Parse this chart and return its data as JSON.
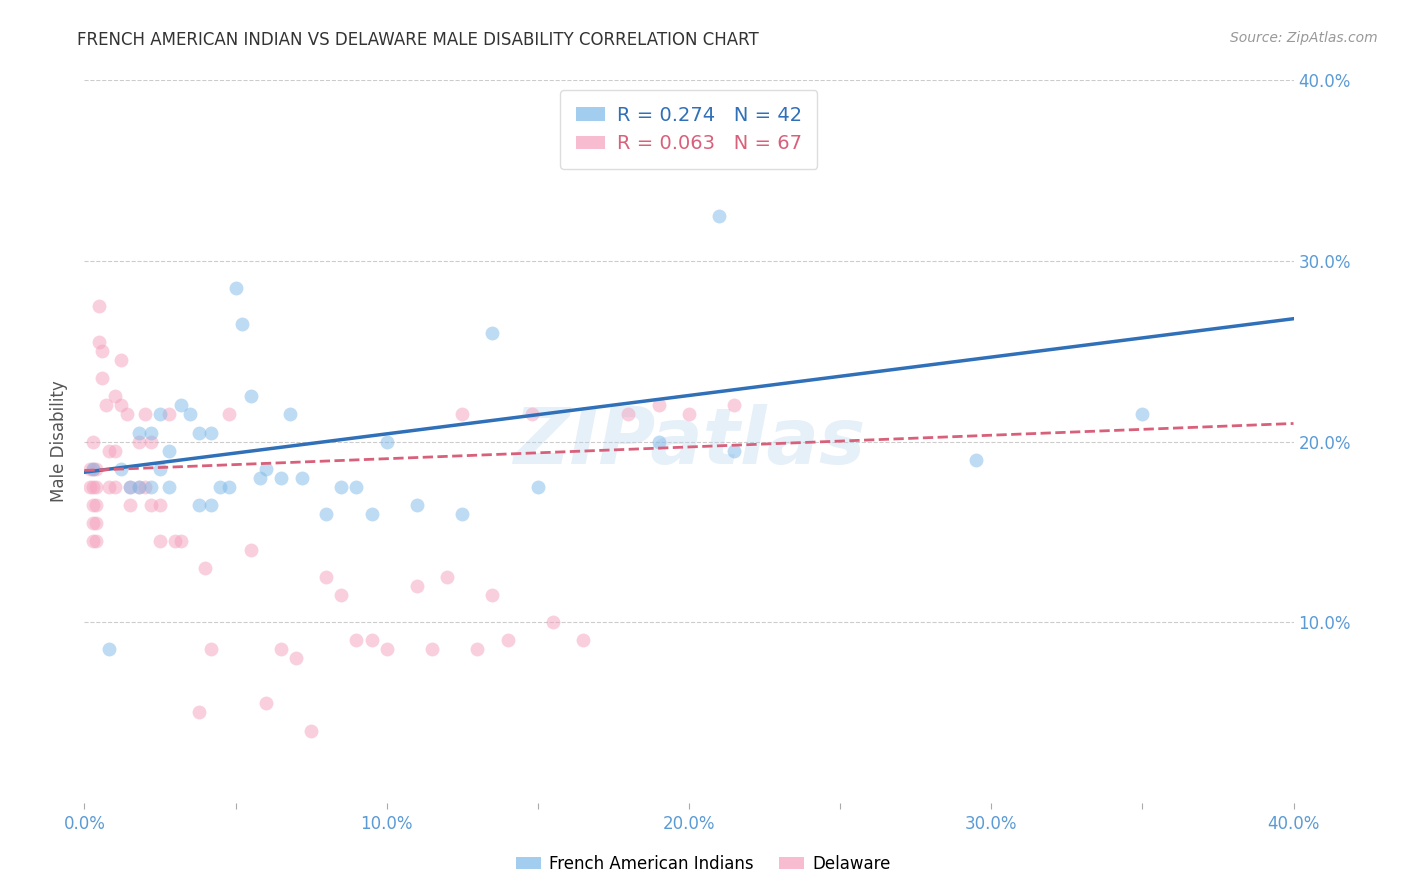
{
  "title": "FRENCH AMERICAN INDIAN VS DELAWARE MALE DISABILITY CORRELATION CHART",
  "source": "Source: ZipAtlas.com",
  "ylabel": "Male Disability",
  "xlim": [
    0.0,
    0.4
  ],
  "ylim": [
    0.0,
    0.4
  ],
  "xtick_labels": [
    "0.0%",
    "",
    "10.0%",
    "",
    "20.0%",
    "",
    "30.0%",
    "",
    "40.0%"
  ],
  "xtick_vals": [
    0.0,
    0.05,
    0.1,
    0.15,
    0.2,
    0.25,
    0.3,
    0.35,
    0.4
  ],
  "ytick_vals": [
    0.1,
    0.2,
    0.3,
    0.4
  ],
  "ytick_right_labels": [
    "10.0%",
    "20.0%",
    "30.0%",
    "40.0%"
  ],
  "blue_color": "#7db8e8",
  "pink_color": "#f4a0bc",
  "blue_line_color": "#3070b8",
  "pink_line_color": "#d9607a",
  "legend_R_blue": "R = 0.274",
  "legend_N_blue": "N = 42",
  "legend_R_pink": "R = 0.063",
  "legend_N_pink": "N = 67",
  "blue_scatter_x": [
    0.003,
    0.008,
    0.012,
    0.015,
    0.018,
    0.018,
    0.022,
    0.022,
    0.025,
    0.025,
    0.028,
    0.028,
    0.032,
    0.035,
    0.038,
    0.038,
    0.042,
    0.042,
    0.045,
    0.048,
    0.05,
    0.052,
    0.055,
    0.058,
    0.06,
    0.065,
    0.068,
    0.072,
    0.08,
    0.085,
    0.09,
    0.095,
    0.1,
    0.11,
    0.125,
    0.135,
    0.15,
    0.19,
    0.21,
    0.215,
    0.295,
    0.35
  ],
  "blue_scatter_y": [
    0.185,
    0.085,
    0.185,
    0.175,
    0.175,
    0.205,
    0.175,
    0.205,
    0.185,
    0.215,
    0.175,
    0.195,
    0.22,
    0.215,
    0.165,
    0.205,
    0.165,
    0.205,
    0.175,
    0.175,
    0.285,
    0.265,
    0.225,
    0.18,
    0.185,
    0.18,
    0.215,
    0.18,
    0.16,
    0.175,
    0.175,
    0.16,
    0.2,
    0.165,
    0.16,
    0.26,
    0.175,
    0.2,
    0.325,
    0.195,
    0.19,
    0.215
  ],
  "pink_scatter_x": [
    0.002,
    0.002,
    0.003,
    0.003,
    0.003,
    0.003,
    0.003,
    0.003,
    0.004,
    0.004,
    0.004,
    0.004,
    0.004,
    0.005,
    0.005,
    0.006,
    0.006,
    0.007,
    0.008,
    0.008,
    0.01,
    0.01,
    0.01,
    0.012,
    0.012,
    0.014,
    0.015,
    0.015,
    0.018,
    0.018,
    0.02,
    0.02,
    0.022,
    0.022,
    0.025,
    0.025,
    0.028,
    0.03,
    0.032,
    0.038,
    0.04,
    0.042,
    0.048,
    0.055,
    0.06,
    0.065,
    0.07,
    0.075,
    0.08,
    0.085,
    0.09,
    0.095,
    0.1,
    0.11,
    0.115,
    0.12,
    0.125,
    0.13,
    0.135,
    0.14,
    0.148,
    0.155,
    0.165,
    0.18,
    0.19,
    0.2,
    0.215
  ],
  "pink_scatter_y": [
    0.185,
    0.175,
    0.2,
    0.185,
    0.175,
    0.165,
    0.155,
    0.145,
    0.185,
    0.175,
    0.165,
    0.155,
    0.145,
    0.255,
    0.275,
    0.235,
    0.25,
    0.22,
    0.195,
    0.175,
    0.225,
    0.195,
    0.175,
    0.245,
    0.22,
    0.215,
    0.175,
    0.165,
    0.2,
    0.175,
    0.215,
    0.175,
    0.2,
    0.165,
    0.165,
    0.145,
    0.215,
    0.145,
    0.145,
    0.05,
    0.13,
    0.085,
    0.215,
    0.14,
    0.055,
    0.085,
    0.08,
    0.04,
    0.125,
    0.115,
    0.09,
    0.09,
    0.085,
    0.12,
    0.085,
    0.125,
    0.215,
    0.085,
    0.115,
    0.09,
    0.215,
    0.1,
    0.09,
    0.215,
    0.22,
    0.215,
    0.22
  ],
  "blue_trend_y_start": 0.183,
  "blue_trend_y_end": 0.268,
  "pink_trend_y_start": 0.184,
  "pink_trend_y_end": 0.21,
  "watermark": "ZIPatlas",
  "background_color": "#ffffff",
  "title_color": "#333333",
  "axis_color": "#5b9bd5",
  "grid_color": "#cccccc",
  "marker_size": 100,
  "marker_alpha": 0.5
}
